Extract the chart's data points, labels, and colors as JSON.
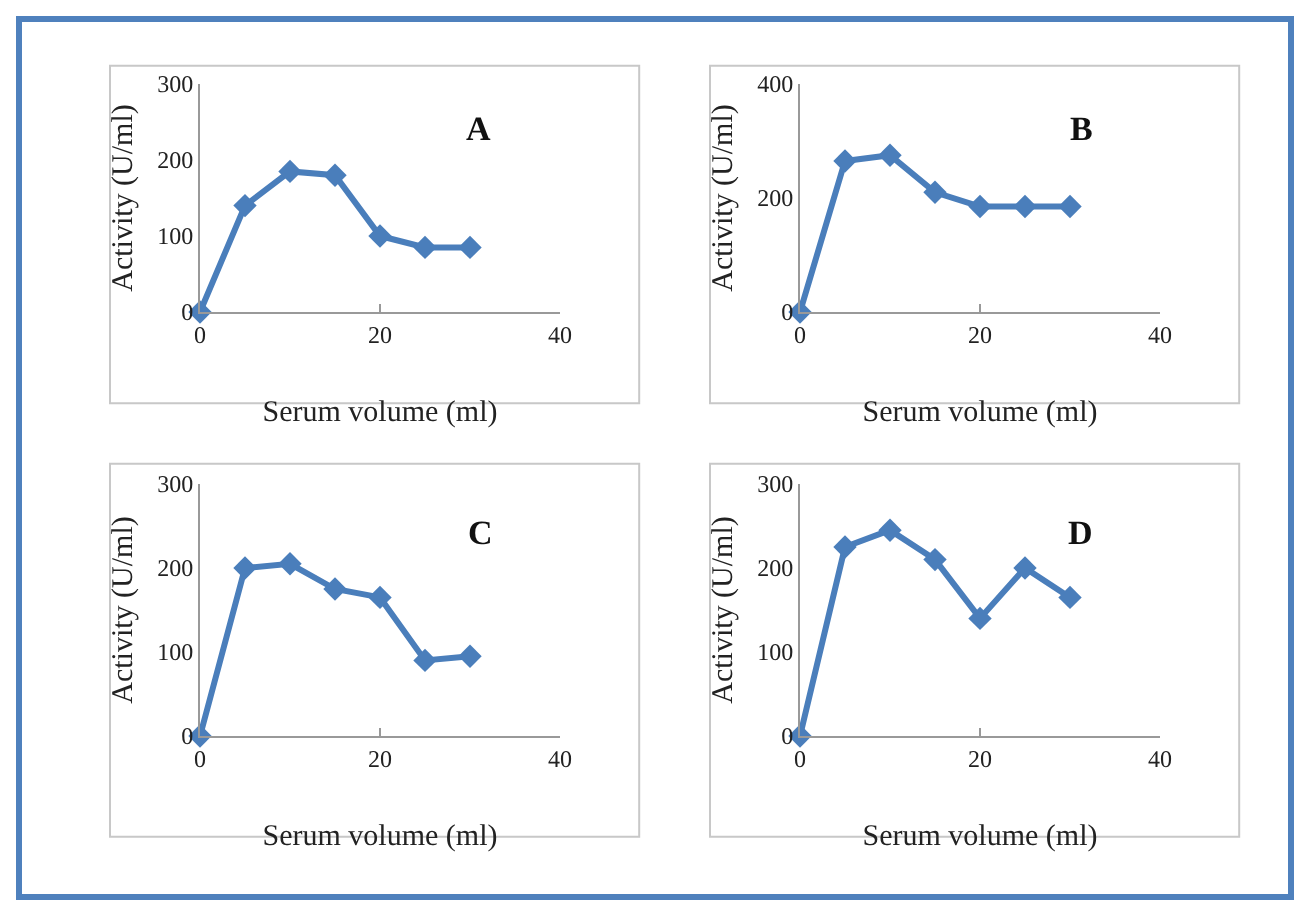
{
  "chart_data": [
    {
      "type": "line",
      "annotations": [
        "A"
      ],
      "xlabel": "Serum volume (ml)",
      "ylabel": "Activity (U/ml)",
      "x": [
        0,
        5,
        10,
        15,
        20,
        25,
        30
      ],
      "values": [
        0,
        140,
        185,
        180,
        100,
        85,
        85
      ],
      "color": "#4a7ebb",
      "marker": "diamond",
      "xlim": [
        0,
        40
      ],
      "xticks": [
        0,
        20,
        40
      ],
      "ylim": [
        0,
        300
      ],
      "yticks": [
        0,
        100,
        200,
        300
      ]
    },
    {
      "type": "line",
      "annotations": [
        "B"
      ],
      "xlabel": "Serum volume (ml)",
      "ylabel": "Activity (U/ml)",
      "x": [
        0,
        5,
        10,
        15,
        20,
        25,
        30
      ],
      "values": [
        0,
        265,
        275,
        210,
        185,
        185,
        185
      ],
      "color": "#4a7ebb",
      "marker": "diamond",
      "xlim": [
        0,
        40
      ],
      "xticks": [
        0,
        20,
        40
      ],
      "ylim": [
        0,
        400
      ],
      "yticks": [
        0,
        200,
        400
      ]
    },
    {
      "type": "line",
      "annotations": [
        "C"
      ],
      "xlabel": "Serum volume (ml)",
      "ylabel": "Activity (U/ml)",
      "x": [
        0,
        5,
        10,
        15,
        20,
        25,
        30
      ],
      "values": [
        0,
        200,
        205,
        175,
        165,
        90,
        95
      ],
      "color": "#4a7ebb",
      "marker": "diamond",
      "xlim": [
        0,
        40
      ],
      "xticks": [
        0,
        20,
        40
      ],
      "ylim": [
        0,
        300
      ],
      "yticks": [
        0,
        100,
        200,
        300
      ]
    },
    {
      "type": "line",
      "annotations": [
        "D"
      ],
      "xlabel": "Serum volume (ml)",
      "ylabel": "Activity (U/ml)",
      "x": [
        0,
        5,
        10,
        15,
        20,
        25,
        30
      ],
      "values": [
        0,
        225,
        245,
        210,
        140,
        200,
        165
      ],
      "color": "#4a7ebb",
      "marker": "diamond",
      "xlim": [
        0,
        40
      ],
      "xticks": [
        0,
        20,
        40
      ],
      "ylim": [
        0,
        300
      ],
      "yticks": [
        0,
        100,
        200,
        300
      ]
    }
  ]
}
